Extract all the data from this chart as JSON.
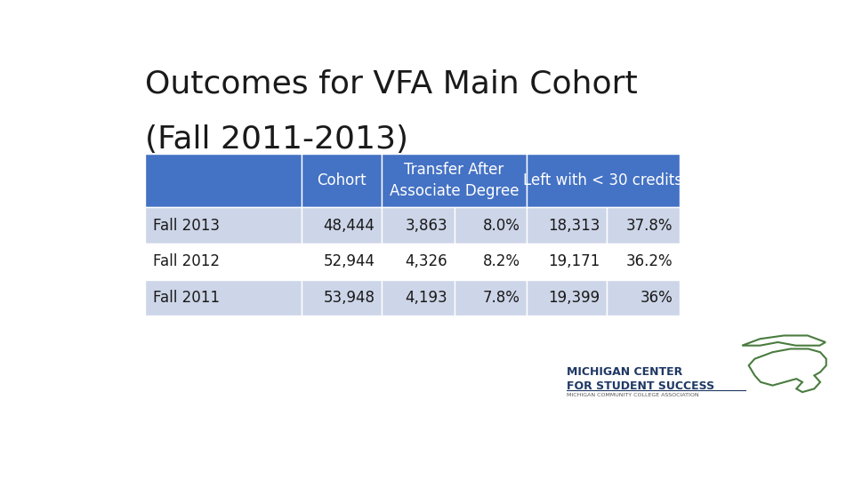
{
  "title_line1": "Outcomes for VFA Main Cohort",
  "title_line2": "(Fall 2011-2013)",
  "title_fontsize": 26,
  "title_color": "#1a1a1a",
  "background_color": "#ffffff",
  "header_bg_color": "#4472C4",
  "header_text_color": "#ffffff",
  "row_colors": [
    "#cdd5e8",
    "#ffffff",
    "#cdd5e8"
  ],
  "row_label_color": "#1a1a1a",
  "row_labels": [
    "Fall 2013",
    "Fall 2012",
    "Fall 2011"
  ],
  "table_data": [
    [
      "48,444",
      "3,863",
      "8.0%",
      "18,313",
      "37.8%"
    ],
    [
      "52,944",
      "4,326",
      "8.2%",
      "19,171",
      "36.2%"
    ],
    [
      "53,948",
      "4,193",
      "7.8%",
      "19,399",
      "36%"
    ]
  ],
  "font_size_data": 12,
  "font_size_header": 12,
  "logo_text1": "MICHIGAN CENTER",
  "logo_text2": "FOR STUDENT SUCCESS",
  "logo_text3": "MICHIGAN COMMUNITY COLLEGE ASSOCIATION",
  "logo_color": "#1F3864",
  "logo_subcolor": "#555555",
  "michigan_color": "#4a7c3f"
}
